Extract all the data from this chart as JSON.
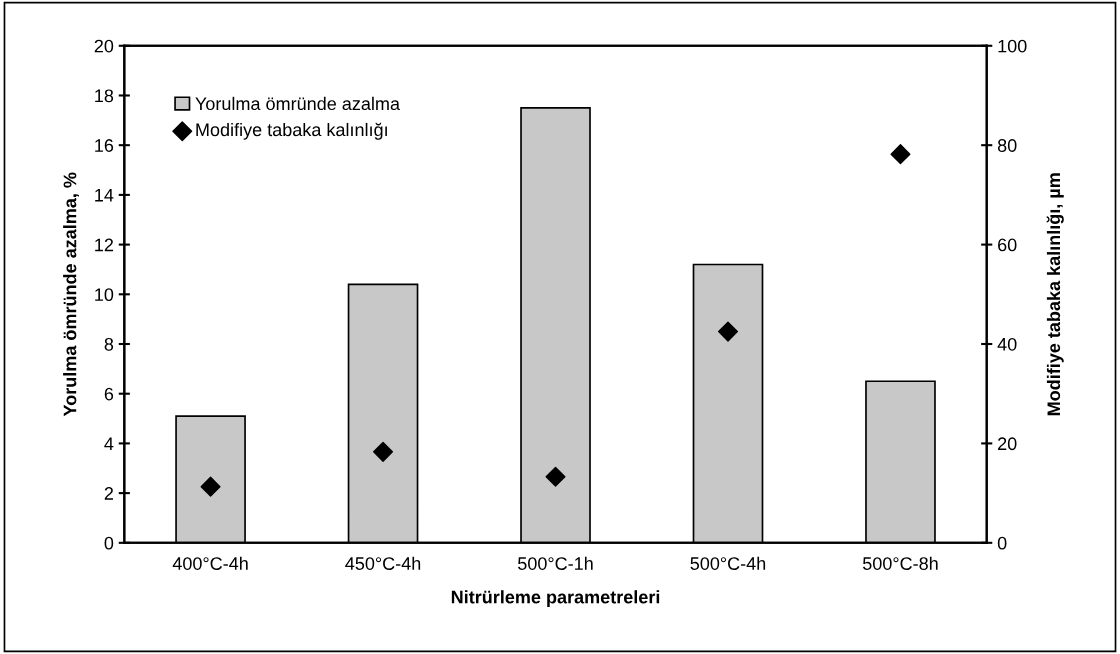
{
  "chart_data": {
    "type": "bar",
    "xlabel": "Nitrürleme parametreleri",
    "ylabel": "Yorulma ömründe azalma, %",
    "y2label": "Modifiye tabaka kalınlığı, µm",
    "categories": [
      "400°C-4h",
      "450°C-4h",
      "500°C-1h",
      "500°C-4h",
      "500°C-8h"
    ],
    "series": [
      {
        "name": "Yorulma ömründe azalma",
        "color": "#c8c8c8",
        "values": [
          5.1,
          10.4,
          17.5,
          11.2,
          6.5
        ]
      },
      {
        "name": "Modifiye tabaka kalınlığı",
        "type": "scatter",
        "axis": "y2",
        "marker": "diamond",
        "color": "#000000",
        "values": [
          11.3,
          18.3,
          13.3,
          42.5,
          78.2
        ]
      }
    ],
    "ylim": [
      0,
      20
    ],
    "yticks": [
      0,
      2,
      4,
      6,
      8,
      10,
      12,
      14,
      16,
      18,
      20
    ],
    "y2lim": [
      0,
      100
    ],
    "y2ticks": [
      0,
      20,
      40,
      60,
      80,
      100
    ],
    "legend": "top left",
    "grid": false
  }
}
